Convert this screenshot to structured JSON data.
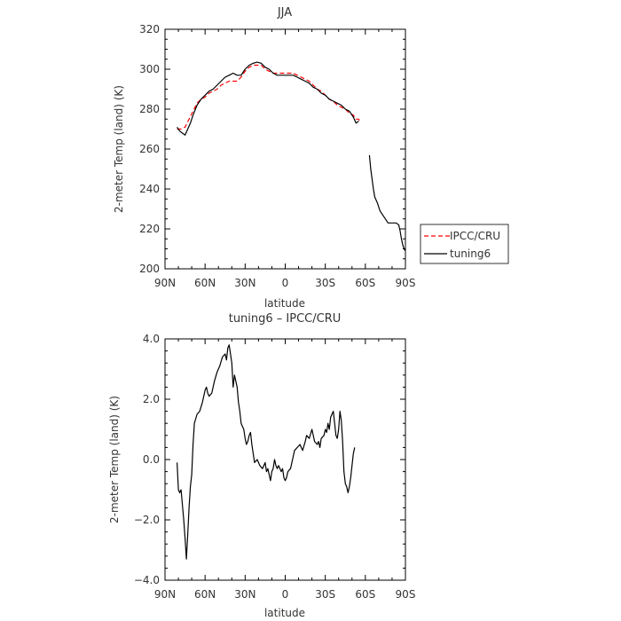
{
  "chart_data": [
    {
      "type": "line",
      "title": "JJA",
      "xlabel": "latitude",
      "ylabel": "2-meter Temp (land) (K)",
      "xlim": [
        90,
        -90
      ],
      "ylim": [
        200,
        320
      ],
      "x_ticks": [
        "90N",
        "60N",
        "30N",
        "0",
        "30S",
        "60S",
        "90S"
      ],
      "y_ticks": [
        "200",
        "220",
        "240",
        "260",
        "280",
        "300",
        "320"
      ],
      "legend_position": "right",
      "series": [
        {
          "name": "IPCC/CRU",
          "color": "#ff0000",
          "dash": "dashed",
          "points": [
            [
              81,
              270
            ],
            [
              78,
              270
            ],
            [
              75,
              271
            ],
            [
              72,
              275
            ],
            [
              69,
              279
            ],
            [
              66,
              283
            ],
            [
              63,
              285
            ],
            [
              60,
              286
            ],
            [
              57,
              288
            ],
            [
              54,
              289
            ],
            [
              51,
              290
            ],
            [
              48,
              292
            ],
            [
              45,
              293
            ],
            [
              42,
              294
            ],
            [
              39,
              294
            ],
            [
              36,
              294
            ],
            [
              33,
              296
            ],
            [
              30,
              299
            ],
            [
              27,
              301
            ],
            [
              24,
              302
            ],
            [
              21,
              302
            ],
            [
              18,
              302
            ],
            [
              15,
              300
            ],
            [
              12,
              299
            ],
            [
              9,
              298
            ],
            [
              6,
              298
            ],
            [
              3,
              298
            ],
            [
              0,
              298
            ],
            [
              -3,
              298
            ],
            [
              -6,
              298
            ],
            [
              -9,
              297
            ],
            [
              -12,
              296
            ],
            [
              -15,
              295
            ],
            [
              -18,
              294
            ],
            [
              -21,
              292
            ],
            [
              -24,
              290
            ],
            [
              -27,
              289
            ],
            [
              -30,
              287
            ],
            [
              -33,
              285
            ],
            [
              -36,
              284
            ],
            [
              -39,
              282
            ],
            [
              -42,
              281
            ],
            [
              -45,
              280
            ],
            [
              -48,
              278
            ],
            [
              -51,
              277
            ],
            [
              -53,
              275
            ],
            [
              -55,
              275
            ],
            [
              -56,
              274
            ]
          ]
        },
        {
          "name": "tuning6",
          "color": "#000000",
          "dash": "solid",
          "points": [
            [
              81,
              271
            ],
            [
              79,
              269
            ],
            [
              77,
              268
            ],
            [
              75,
              267
            ],
            [
              73,
              270
            ],
            [
              71,
              273
            ],
            [
              69,
              277
            ],
            [
              66,
              282
            ],
            [
              63,
              285
            ],
            [
              60,
              287
            ],
            [
              57,
              289
            ],
            [
              54,
              290
            ],
            [
              51,
              292
            ],
            [
              48,
              294
            ],
            [
              45,
              296
            ],
            [
              42,
              297
            ],
            [
              39,
              298
            ],
            [
              36,
              297
            ],
            [
              33,
              297
            ],
            [
              30,
              300
            ],
            [
              27,
              302
            ],
            [
              24,
              303
            ],
            [
              21,
              303.5
            ],
            [
              18,
              303
            ],
            [
              15,
              301
            ],
            [
              12,
              300
            ],
            [
              9,
              298
            ],
            [
              6,
              297
            ],
            [
              3,
              297
            ],
            [
              0,
              297
            ],
            [
              -3,
              297
            ],
            [
              -6,
              297
            ],
            [
              -9,
              296
            ],
            [
              -12,
              295
            ],
            [
              -15,
              294
            ],
            [
              -18,
              293
            ],
            [
              -21,
              291
            ],
            [
              -24,
              290
            ],
            [
              -27,
              288
            ],
            [
              -30,
              287
            ],
            [
              -33,
              285
            ],
            [
              -36,
              284
            ],
            [
              -39,
              283
            ],
            [
              -42,
              282
            ],
            [
              -45,
              280
            ],
            [
              -48,
              279
            ],
            [
              -51,
              276
            ],
            [
              -53,
              273
            ],
            [
              -55,
              274
            ]
          ]
        },
        {
          "name": "tuning6",
          "color": "#000000",
          "dash": "solid",
          "points": [
            [
              -63,
              257
            ],
            [
              -64,
              250
            ],
            [
              -65,
              245
            ],
            [
              -66,
              240
            ],
            [
              -67,
              236
            ],
            [
              -69,
              233
            ],
            [
              -71,
              229
            ],
            [
              -73,
              227
            ],
            [
              -75,
              225
            ],
            [
              -77,
              223
            ],
            [
              -79,
              223
            ],
            [
              -81,
              223
            ],
            [
              -83,
              223
            ],
            [
              -85,
              222
            ],
            [
              -86,
              219
            ],
            [
              -87,
              215
            ],
            [
              -88,
              212
            ],
            [
              -89,
              210
            ],
            [
              -90,
              209
            ]
          ]
        }
      ]
    },
    {
      "type": "line",
      "title": "tuning6 – IPCC/CRU",
      "xlabel": "latitude",
      "ylabel": "2-meter Temp (land) (K)",
      "xlim": [
        90,
        -90
      ],
      "ylim": [
        -4.0,
        4.0
      ],
      "x_ticks": [
        "90N",
        "60N",
        "30N",
        "0",
        "30S",
        "60S",
        "90S"
      ],
      "y_ticks": [
        "−4.0",
        "−2.0",
        "0.0",
        "2.0",
        "4.0"
      ],
      "series": [
        {
          "name": "tuning6 - IPCC/CRU",
          "color": "#000000",
          "dash": "solid",
          "points": [
            [
              81,
              -0.1
            ],
            [
              80,
              -1.0
            ],
            [
              79,
              -1.1
            ],
            [
              78,
              -1.0
            ],
            [
              77,
              -1.5
            ],
            [
              76,
              -2.0
            ],
            [
              75,
              -2.6
            ],
            [
              74,
              -3.3
            ],
            [
              73,
              -2.5
            ],
            [
              72,
              -1.6
            ],
            [
              71,
              -0.9
            ],
            [
              70,
              -0.5
            ],
            [
              69,
              0.5
            ],
            [
              68,
              1.2
            ],
            [
              66,
              1.5
            ],
            [
              64,
              1.6
            ],
            [
              62,
              1.9
            ],
            [
              60,
              2.3
            ],
            [
              59,
              2.4
            ],
            [
              58,
              2.2
            ],
            [
              57,
              2.1
            ],
            [
              55,
              2.2
            ],
            [
              53,
              2.6
            ],
            [
              51,
              2.9
            ],
            [
              49,
              3.1
            ],
            [
              47,
              3.4
            ],
            [
              45,
              3.5
            ],
            [
              44,
              3.3
            ],
            [
              43,
              3.7
            ],
            [
              42,
              3.8
            ],
            [
              41,
              3.5
            ],
            [
              40,
              3.2
            ],
            [
              39,
              2.4
            ],
            [
              38,
              2.8
            ],
            [
              36,
              2.4
            ],
            [
              35,
              1.9
            ],
            [
              34,
              1.6
            ],
            [
              33,
              1.2
            ],
            [
              31,
              1.0
            ],
            [
              30,
              0.7
            ],
            [
              29,
              0.5
            ],
            [
              28,
              0.6
            ],
            [
              27,
              0.8
            ],
            [
              26,
              0.9
            ],
            [
              25,
              0.5
            ],
            [
              24,
              0.2
            ],
            [
              23,
              -0.1
            ],
            [
              21,
              0.0
            ],
            [
              19,
              -0.2
            ],
            [
              17,
              -0.3
            ],
            [
              15,
              -0.1
            ],
            [
              14,
              -0.4
            ],
            [
              13,
              -0.3
            ],
            [
              12,
              -0.5
            ],
            [
              11,
              -0.7
            ],
            [
              10,
              -0.4
            ],
            [
              9,
              -0.3
            ],
            [
              8,
              0.0
            ],
            [
              7,
              -0.2
            ],
            [
              6,
              -0.3
            ],
            [
              5,
              -0.2
            ],
            [
              3,
              -0.4
            ],
            [
              2,
              -0.3
            ],
            [
              1,
              -0.6
            ],
            [
              0,
              -0.7
            ],
            [
              -1,
              -0.6
            ],
            [
              -2,
              -0.4
            ],
            [
              -4,
              -0.3
            ],
            [
              -5,
              -0.1
            ],
            [
              -6,
              0.1
            ],
            [
              -7,
              0.3
            ],
            [
              -9,
              0.4
            ],
            [
              -11,
              0.5
            ],
            [
              -13,
              0.3
            ],
            [
              -15,
              0.6
            ],
            [
              -16,
              0.8
            ],
            [
              -18,
              0.7
            ],
            [
              -20,
              1.0
            ],
            [
              -21,
              0.8
            ],
            [
              -22,
              0.6
            ],
            [
              -24,
              0.5
            ],
            [
              -25,
              0.6
            ],
            [
              -26,
              0.4
            ],
            [
              -27,
              0.7
            ],
            [
              -29,
              0.8
            ],
            [
              -30,
              1.0
            ],
            [
              -31,
              0.9
            ],
            [
              -32,
              1.2
            ],
            [
              -33,
              1.0
            ],
            [
              -34,
              1.4
            ],
            [
              -35,
              1.5
            ],
            [
              -36,
              1.6
            ],
            [
              -37,
              1.2
            ],
            [
              -38,
              0.8
            ],
            [
              -39,
              0.7
            ],
            [
              -40,
              1.0
            ],
            [
              -41,
              1.6
            ],
            [
              -42,
              1.3
            ],
            [
              -43,
              0.6
            ],
            [
              -44,
              -0.4
            ],
            [
              -45,
              -0.8
            ],
            [
              -46,
              -0.9
            ],
            [
              -47,
              -1.1
            ],
            [
              -48,
              -0.9
            ],
            [
              -49,
              -0.6
            ],
            [
              -50,
              -0.2
            ],
            [
              -51,
              0.2
            ],
            [
              -52,
              0.4
            ]
          ]
        }
      ]
    }
  ]
}
